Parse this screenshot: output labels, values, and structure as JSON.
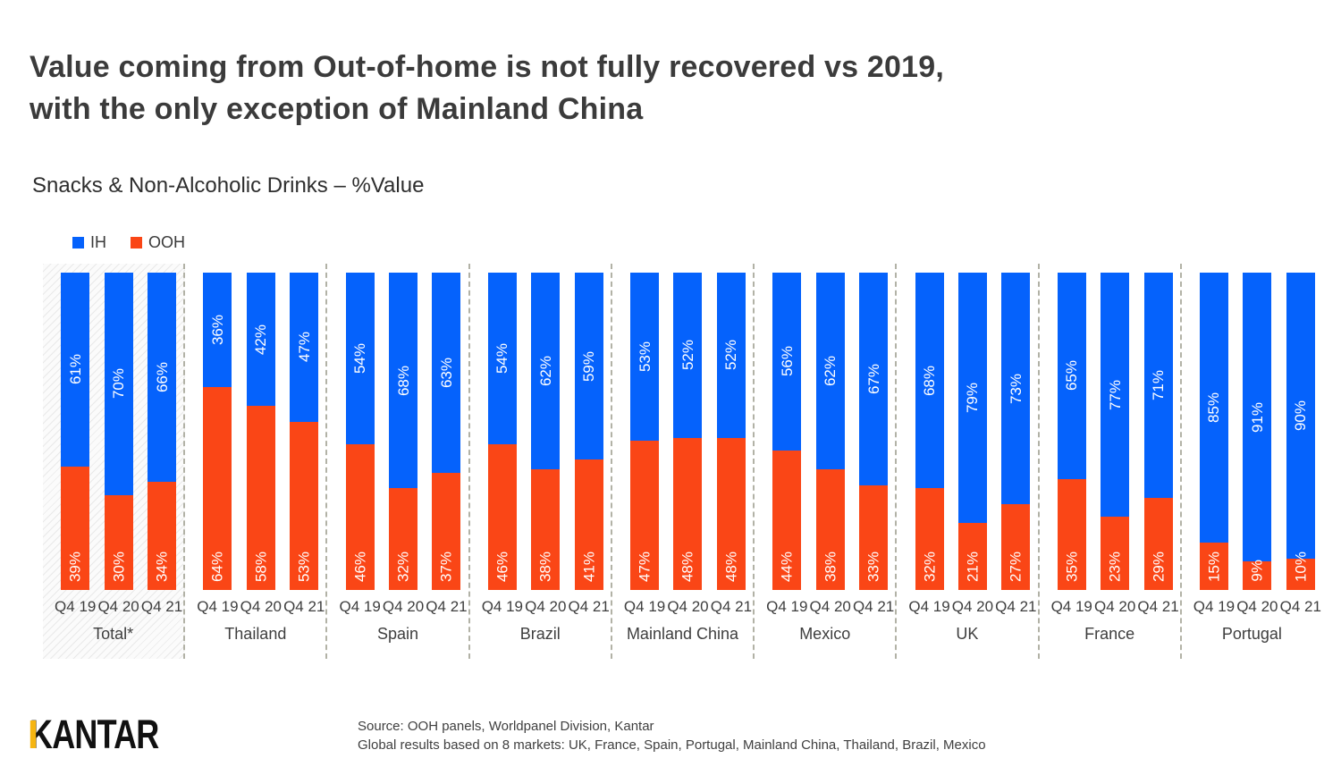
{
  "slide": {
    "title_line1": "Value coming from Out-of-home is not fully recovered vs 2019,",
    "title_line2": "with the only exception of Mainland China",
    "subtitle": "Snacks & Non-Alcoholic Drinks – %Value"
  },
  "legend": [
    {
      "name": "IH",
      "color": "#0562FC"
    },
    {
      "name": "OOH",
      "color": "#FA4616"
    }
  ],
  "chart_data": {
    "type": "bar",
    "stacked": true,
    "value_unit": "%",
    "ylim": [
      0,
      100
    ],
    "grid": false,
    "legend_position": "top-left",
    "x_ticks": [
      "Q4 19",
      "Q4 20",
      "Q4 21"
    ],
    "series_names": [
      "IH",
      "OOH"
    ],
    "series_colors": {
      "IH": "#0562FC",
      "OOH": "#FA4616"
    },
    "groups": [
      {
        "label": "Total*",
        "highlighted": true,
        "IH": [
          61,
          70,
          66
        ],
        "OOH": [
          39,
          30,
          34
        ]
      },
      {
        "label": "Thailand",
        "IH": [
          36,
          42,
          47
        ],
        "OOH": [
          64,
          58,
          53
        ]
      },
      {
        "label": "Spain",
        "IH": [
          54,
          68,
          63
        ],
        "OOH": [
          46,
          32,
          37
        ]
      },
      {
        "label": "Brazil",
        "IH": [
          54,
          62,
          59
        ],
        "OOH": [
          46,
          38,
          41
        ]
      },
      {
        "label": "Mainland China",
        "IH": [
          53,
          52,
          52
        ],
        "OOH": [
          47,
          48,
          48
        ]
      },
      {
        "label": "Mexico",
        "IH": [
          56,
          62,
          67
        ],
        "OOH": [
          44,
          38,
          33
        ]
      },
      {
        "label": "UK",
        "IH": [
          68,
          79,
          73
        ],
        "OOH": [
          32,
          21,
          27
        ]
      },
      {
        "label": "France",
        "IH": [
          65,
          77,
          71
        ],
        "OOH": [
          35,
          23,
          29
        ]
      },
      {
        "label": "Portugal",
        "IH": [
          85,
          91,
          90
        ],
        "OOH": [
          15,
          9,
          10
        ]
      }
    ]
  },
  "footer": {
    "logo_text": "KANTAR",
    "source_line1": "Source: OOH panels, Worldpanel Division, Kantar",
    "source_line2": "Global results based on 8 markets: UK, France, Spain, Portugal, Mainland China, Thailand, Brazil, Mexico"
  }
}
